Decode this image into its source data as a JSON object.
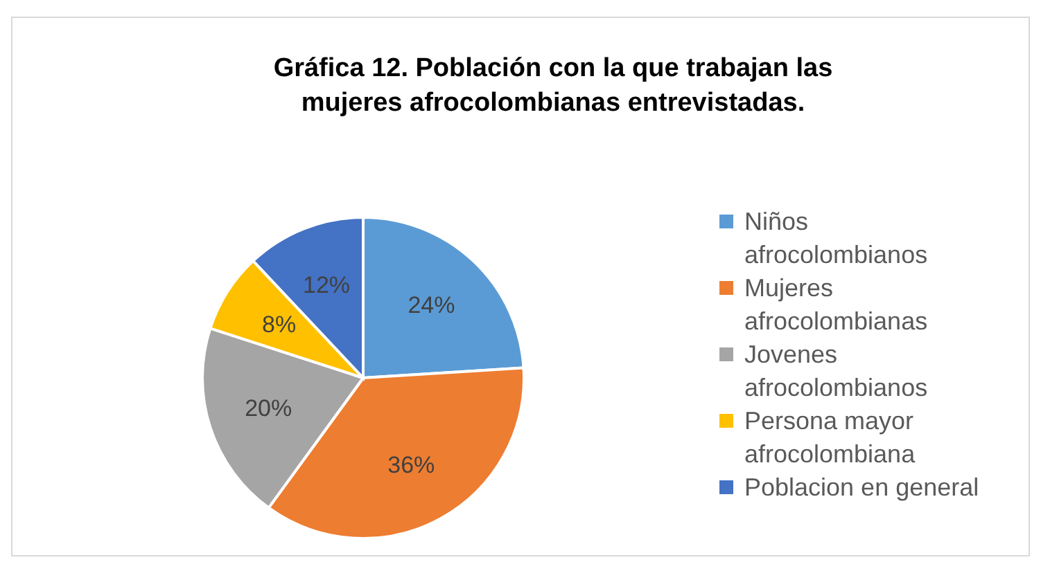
{
  "chart_data": {
    "type": "pie",
    "title": "Gráfica 12. Población con la que trabajan las mujeres afrocolombianas entrevistadas.",
    "categories": [
      "Niños afrocolombianos",
      "Mujeres afrocolombianas",
      "Jovenes afrocolombianos",
      "Persona mayor afrocolombiana",
      "Poblacion en general"
    ],
    "values": [
      24,
      36,
      20,
      8,
      12
    ],
    "colors": [
      "#5b9bd5",
      "#ed7d31",
      "#a5a5a5",
      "#ffc000",
      "#4472c4"
    ],
    "value_labels": [
      "24%",
      "36%",
      "20%",
      "8%",
      "12%"
    ],
    "legend": "right"
  }
}
